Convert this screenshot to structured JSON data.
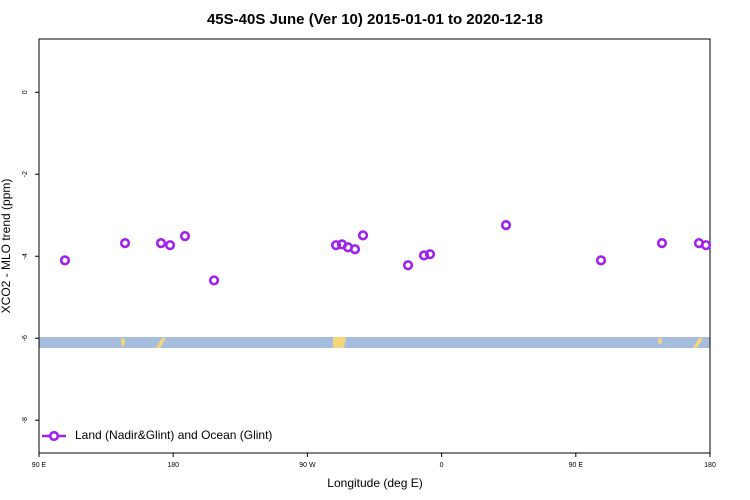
{
  "chart_data": {
    "type": "scatter",
    "title": "45S-40S June (Ver 10)   2015-01-01 to 2020-12-18",
    "x_label": "Longitude (deg E)",
    "y_label": "XCO2 - MLO trend (ppm)",
    "xlim": [
      90,
      540
    ],
    "ylim": [
      -8.8,
      1.3
    ],
    "xticks": [
      {
        "value": 90,
        "label": "90 E"
      },
      {
        "value": 180,
        "label": "180"
      },
      {
        "value": 270,
        "label": "90 W"
      },
      {
        "value": 360,
        "label": "0"
      },
      {
        "value": 450,
        "label": "90 E"
      },
      {
        "value": 540,
        "label": "180"
      }
    ],
    "yticks": [
      0,
      -2,
      -4,
      -6,
      -8
    ],
    "legend": "bottom-left",
    "series": [
      {
        "name": "Land (Nadir&Glint) and Ocean (Glint)",
        "color": "#a020f0",
        "x": [
          107.4,
          147.7,
          171.8,
          177.9,
          187.9,
          207.4,
          289.2,
          293.2,
          297.2,
          301.9,
          307.3,
          337.5,
          348.2,
          352.2,
          403.2,
          466.9,
          507.8,
          532.6,
          537.3
        ],
        "values": [
          -4.1,
          -3.68,
          -3.68,
          -3.73,
          -3.51,
          -4.59,
          -3.73,
          -3.71,
          -3.78,
          -3.83,
          -3.49,
          -4.22,
          -3.98,
          -3.95,
          -3.24,
          -4.1,
          -3.68,
          -3.68,
          -3.73
        ]
      }
    ]
  }
}
